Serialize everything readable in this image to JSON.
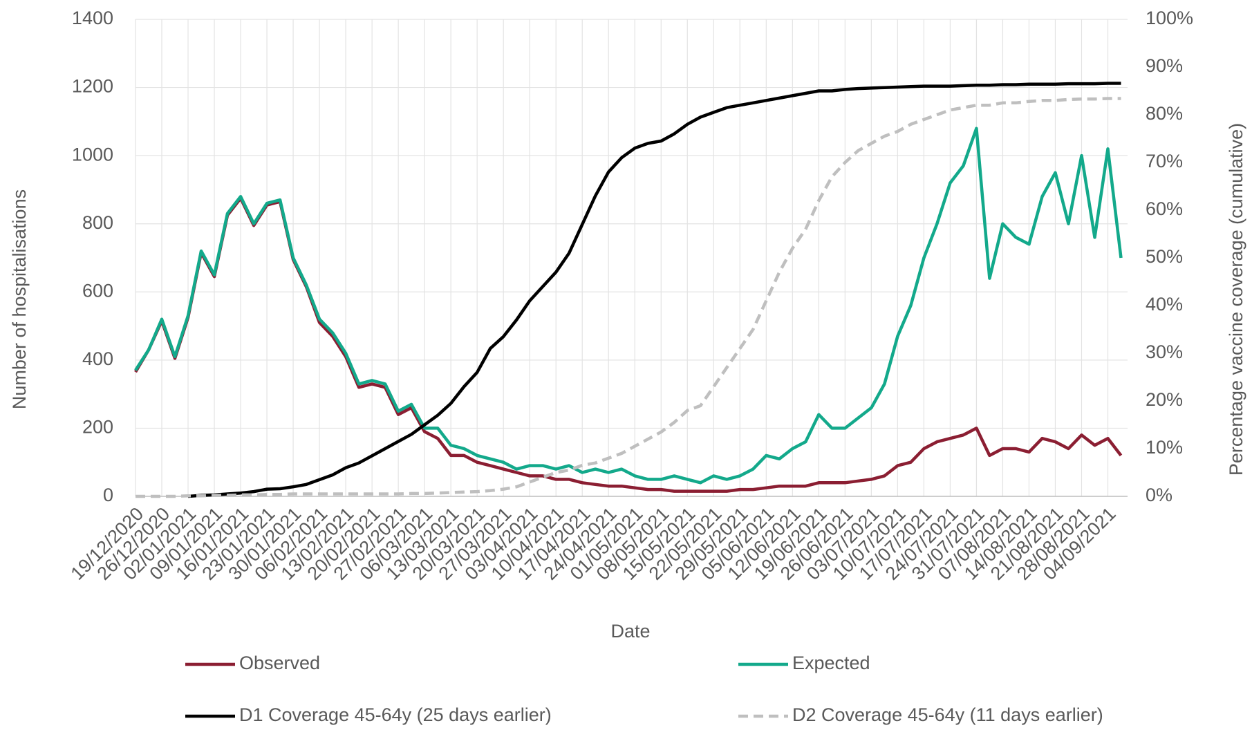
{
  "chart_data": {
    "type": "line",
    "x_label": "Date",
    "y_label": "Number of hospitalisations",
    "y2_label": "Percentage vaccine coverage (cumulative)",
    "categories": [
      "19/12/2020",
      null,
      "26/12/2020",
      null,
      "02/01/2021",
      null,
      "09/01/2021",
      null,
      "16/01/2021",
      null,
      "23/01/2021",
      null,
      "30/01/2021",
      null,
      "06/02/2021",
      null,
      "13/02/2021",
      null,
      "20/02/2021",
      null,
      "27/02/2021",
      null,
      "06/03/2021",
      null,
      "13/03/2021",
      null,
      "20/03/2021",
      null,
      "27/03/2021",
      null,
      "03/04/2021",
      null,
      "10/04/2021",
      null,
      "17/04/2021",
      null,
      "24/04/2021",
      null,
      "01/05/2021",
      null,
      "08/05/2021",
      null,
      "15/05/2021",
      null,
      "22/05/2021",
      null,
      "29/05/2021",
      null,
      "05/06/2021",
      null,
      "12/06/2021",
      null,
      "19/06/2021",
      null,
      "26/06/2021",
      null,
      "03/07/2021",
      null,
      "10/07/2021",
      null,
      "17/07/2021",
      null,
      "24/07/2021",
      null,
      "31/07/2021",
      null,
      "07/08/2021",
      null,
      "14/08/2021",
      null,
      "21/08/2021",
      null,
      "28/08/2021",
      null,
      "04/09/2021",
      null
    ],
    "series": [
      {
        "name": "Observed",
        "color": "#8b1e32",
        "line_style": "solid",
        "values": [
          365,
          430,
          515,
          405,
          525,
          715,
          645,
          825,
          875,
          795,
          855,
          865,
          695,
          615,
          510,
          470,
          410,
          320,
          330,
          320,
          240,
          260,
          190,
          170,
          120,
          120,
          100,
          90,
          80,
          70,
          60,
          60,
          50,
          50,
          40,
          35,
          30,
          30,
          25,
          20,
          20,
          15,
          15,
          15,
          15,
          15,
          20,
          20,
          25,
          30,
          30,
          30,
          40,
          40,
          40,
          45,
          50,
          60,
          90,
          100,
          140,
          160,
          170,
          180,
          200,
          120,
          140,
          140,
          130,
          170,
          160,
          140,
          180,
          150,
          170,
          120
        ]
      },
      {
        "name": "Expected",
        "color": "#13a98b",
        "line_style": "solid",
        "values": [
          370,
          430,
          520,
          410,
          530,
          720,
          650,
          830,
          880,
          800,
          860,
          870,
          700,
          620,
          520,
          480,
          420,
          330,
          340,
          330,
          250,
          270,
          200,
          200,
          150,
          140,
          120,
          110,
          100,
          80,
          90,
          90,
          80,
          90,
          70,
          80,
          70,
          80,
          60,
          50,
          50,
          60,
          50,
          40,
          60,
          50,
          60,
          80,
          120,
          110,
          140,
          160,
          240,
          200,
          200,
          230,
          260,
          330,
          470,
          560,
          700,
          800,
          920,
          970,
          1080,
          640,
          800,
          760,
          740,
          880,
          950,
          800,
          1000,
          760,
          1020,
          700
        ]
      },
      {
        "name": "D1 Coverage 45-64y (25 days earlier)",
        "color": "#000000",
        "line_style": "solid",
        "axis": "y2",
        "values": [
          null,
          null,
          null,
          null,
          0,
          0.2,
          0.3,
          0.5,
          0.7,
          1,
          1.5,
          1.6,
          2,
          2.5,
          3.5,
          4.5,
          6,
          7,
          8.5,
          10,
          11.5,
          13,
          15,
          17,
          19.5,
          23,
          26,
          31,
          33.5,
          37,
          41,
          44,
          47,
          51,
          57,
          63,
          68,
          71,
          73,
          74,
          74.5,
          76,
          78,
          79.5,
          80.5,
          81.5,
          82,
          82.5,
          83,
          83.5,
          84,
          84.5,
          85,
          85,
          85.3,
          85.5,
          85.6,
          85.7,
          85.8,
          85.9,
          86,
          86,
          86,
          86.1,
          86.2,
          86.2,
          86.3,
          86.3,
          86.4,
          86.4,
          86.4,
          86.5,
          86.5,
          86.5,
          86.6,
          86.6
        ]
      },
      {
        "name": "D2 Coverage 45-64y (11 days earlier)",
        "color": "#bfbfbf",
        "line_style": "dashed",
        "axis": "y2",
        "values": [
          0,
          0,
          0,
          0,
          0.1,
          0.1,
          0.2,
          0.2,
          0.3,
          0.3,
          0.4,
          0.4,
          0.5,
          0.5,
          0.5,
          0.5,
          0.5,
          0.5,
          0.5,
          0.5,
          0.5,
          0.6,
          0.6,
          0.7,
          0.8,
          0.9,
          1,
          1.2,
          1.5,
          2,
          3,
          4,
          5,
          5.5,
          6.5,
          7,
          8,
          9,
          10.5,
          12,
          13.5,
          15.5,
          18,
          19,
          23,
          27,
          31,
          35,
          41,
          47,
          52,
          56,
          62,
          67,
          70,
          72.5,
          74,
          75.5,
          76.5,
          78,
          79,
          80,
          81,
          81.5,
          82,
          82,
          82.5,
          82.5,
          82.8,
          83,
          83,
          83.2,
          83.3,
          83.3,
          83.4,
          83.4
        ]
      }
    ],
    "ylim": [
      0,
      1400
    ],
    "yticks": [
      0,
      200,
      400,
      600,
      800,
      1000,
      1200,
      1400
    ],
    "y2lim": [
      0,
      100
    ],
    "y2ticks": [
      {
        "value": 0,
        "label": "0%"
      },
      {
        "value": 10,
        "label": "10%"
      },
      {
        "value": 20,
        "label": "20%"
      },
      {
        "value": 30,
        "label": "30%"
      },
      {
        "value": 40,
        "label": "40%"
      },
      {
        "value": 50,
        "label": "50%"
      },
      {
        "value": 60,
        "label": "60%"
      },
      {
        "value": 70,
        "label": "70%"
      },
      {
        "value": 80,
        "label": "80%"
      },
      {
        "value": 90,
        "label": "90%"
      },
      {
        "value": 100,
        "label": "100%"
      }
    ],
    "grid": true,
    "legend": "bottom"
  }
}
